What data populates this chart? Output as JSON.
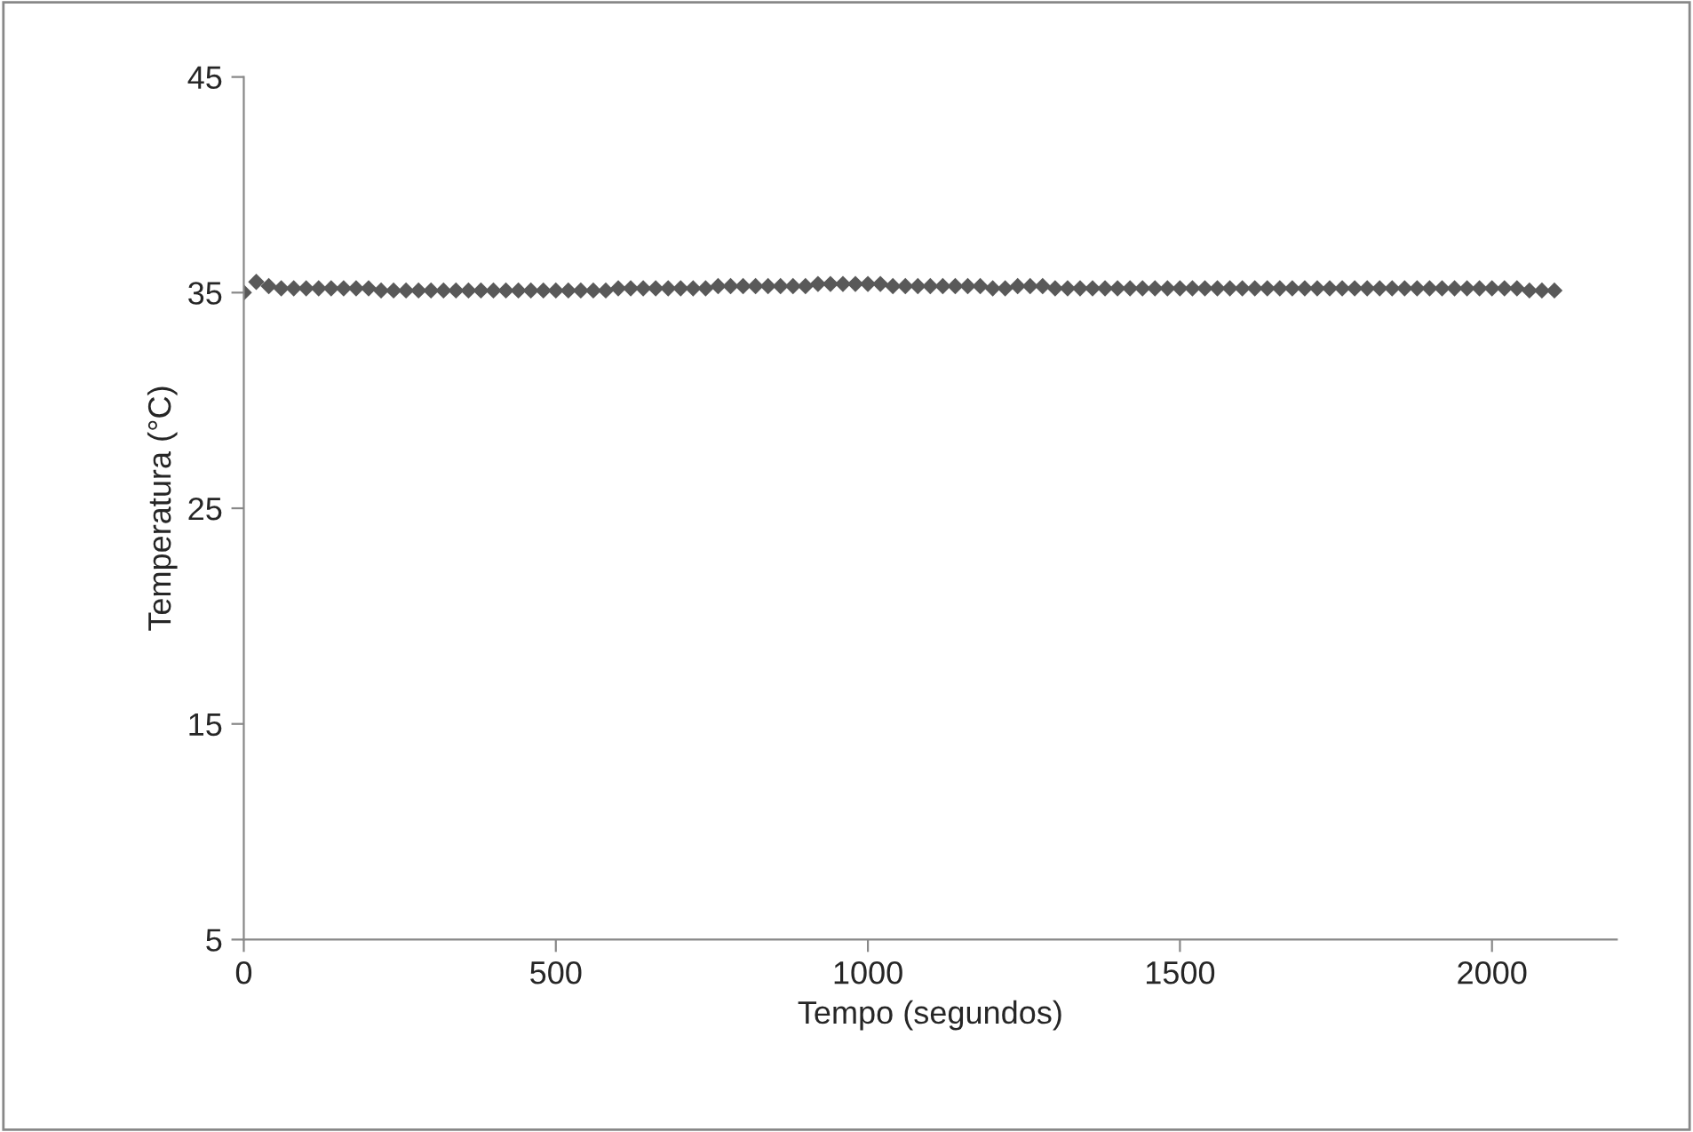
{
  "chart_data": {
    "type": "scatter",
    "xlabel": "Tempo (segundos)",
    "ylabel": "Temperatura (°C)",
    "xlim": [
      0,
      2200
    ],
    "xticks": [
      0,
      500,
      1000,
      1500,
      2000
    ],
    "ylim": [
      5,
      45
    ],
    "yticks": [
      5,
      15,
      25,
      35,
      45
    ],
    "marker": "diamond",
    "grid": false,
    "legend": false,
    "series": [
      {
        "color": "#595959",
        "x": [
          0,
          20,
          40,
          60,
          80,
          100,
          120,
          140,
          160,
          180,
          200,
          220,
          240,
          260,
          280,
          300,
          320,
          340,
          360,
          380,
          400,
          420,
          440,
          460,
          480,
          500,
          520,
          540,
          560,
          580,
          600,
          620,
          640,
          660,
          680,
          700,
          720,
          740,
          760,
          780,
          800,
          820,
          840,
          860,
          880,
          900,
          920,
          940,
          960,
          980,
          1000,
          1020,
          1040,
          1060,
          1080,
          1100,
          1120,
          1140,
          1160,
          1180,
          1200,
          1220,
          1240,
          1260,
          1280,
          1300,
          1320,
          1340,
          1360,
          1380,
          1400,
          1420,
          1440,
          1460,
          1480,
          1500,
          1520,
          1540,
          1560,
          1580,
          1600,
          1620,
          1640,
          1660,
          1680,
          1700,
          1720,
          1740,
          1760,
          1780,
          1800,
          1820,
          1840,
          1860,
          1880,
          1900,
          1920,
          1940,
          1960,
          1980,
          2000,
          2020,
          2040,
          2060,
          2080,
          2100
        ],
        "values": [
          35.0,
          35.5,
          35.3,
          35.2,
          35.2,
          35.2,
          35.2,
          35.2,
          35.2,
          35.2,
          35.2,
          35.1,
          35.1,
          35.1,
          35.1,
          35.1,
          35.1,
          35.1,
          35.1,
          35.1,
          35.1,
          35.1,
          35.1,
          35.1,
          35.1,
          35.1,
          35.1,
          35.1,
          35.1,
          35.1,
          35.2,
          35.2,
          35.2,
          35.2,
          35.2,
          35.2,
          35.2,
          35.2,
          35.3,
          35.3,
          35.3,
          35.3,
          35.3,
          35.3,
          35.3,
          35.3,
          35.4,
          35.4,
          35.4,
          35.4,
          35.4,
          35.4,
          35.3,
          35.3,
          35.3,
          35.3,
          35.3,
          35.3,
          35.3,
          35.3,
          35.2,
          35.2,
          35.3,
          35.3,
          35.3,
          35.2,
          35.2,
          35.2,
          35.2,
          35.2,
          35.2,
          35.2,
          35.2,
          35.2,
          35.2,
          35.2,
          35.2,
          35.2,
          35.2,
          35.2,
          35.2,
          35.2,
          35.2,
          35.2,
          35.2,
          35.2,
          35.2,
          35.2,
          35.2,
          35.2,
          35.2,
          35.2,
          35.2,
          35.2,
          35.2,
          35.2,
          35.2,
          35.2,
          35.2,
          35.2,
          35.2,
          35.2,
          35.2,
          35.1,
          35.1,
          35.1
        ]
      }
    ]
  }
}
